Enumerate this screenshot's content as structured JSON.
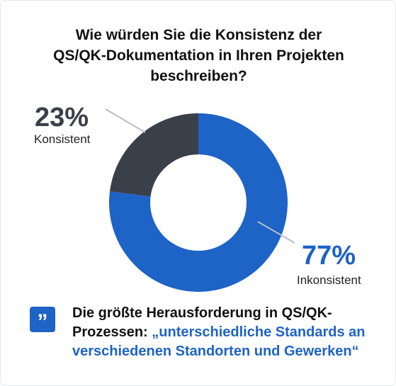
{
  "chart_data": {
    "type": "pie",
    "title": [
      "Wie würden Sie die Konsistenz der",
      "QS/QK-Dokumentation in Ihren Projekten",
      "beschreiben?"
    ],
    "slices": [
      {
        "label": "Konsistent",
        "value": 23,
        "display": "23%",
        "color": "#3a4049"
      },
      {
        "label": "Inkonsistent",
        "value": 77,
        "display": "77%",
        "color": "#1e63c6"
      }
    ],
    "colors": {
      "leader_line": "#b8bec6",
      "hole": "#ffffff"
    }
  },
  "footer": {
    "quote_icon": "quote-icon",
    "quote_glyph": "”",
    "line1": "Die größte Herausforderung in QS/QK-",
    "line2_prefix": "Prozessen: ",
    "line2_highlight": "„unterschiedliche Standards an",
    "line3_highlight": "verschiedenen Standorten und Gewerken“",
    "highlight_color": "#1e63c6"
  }
}
